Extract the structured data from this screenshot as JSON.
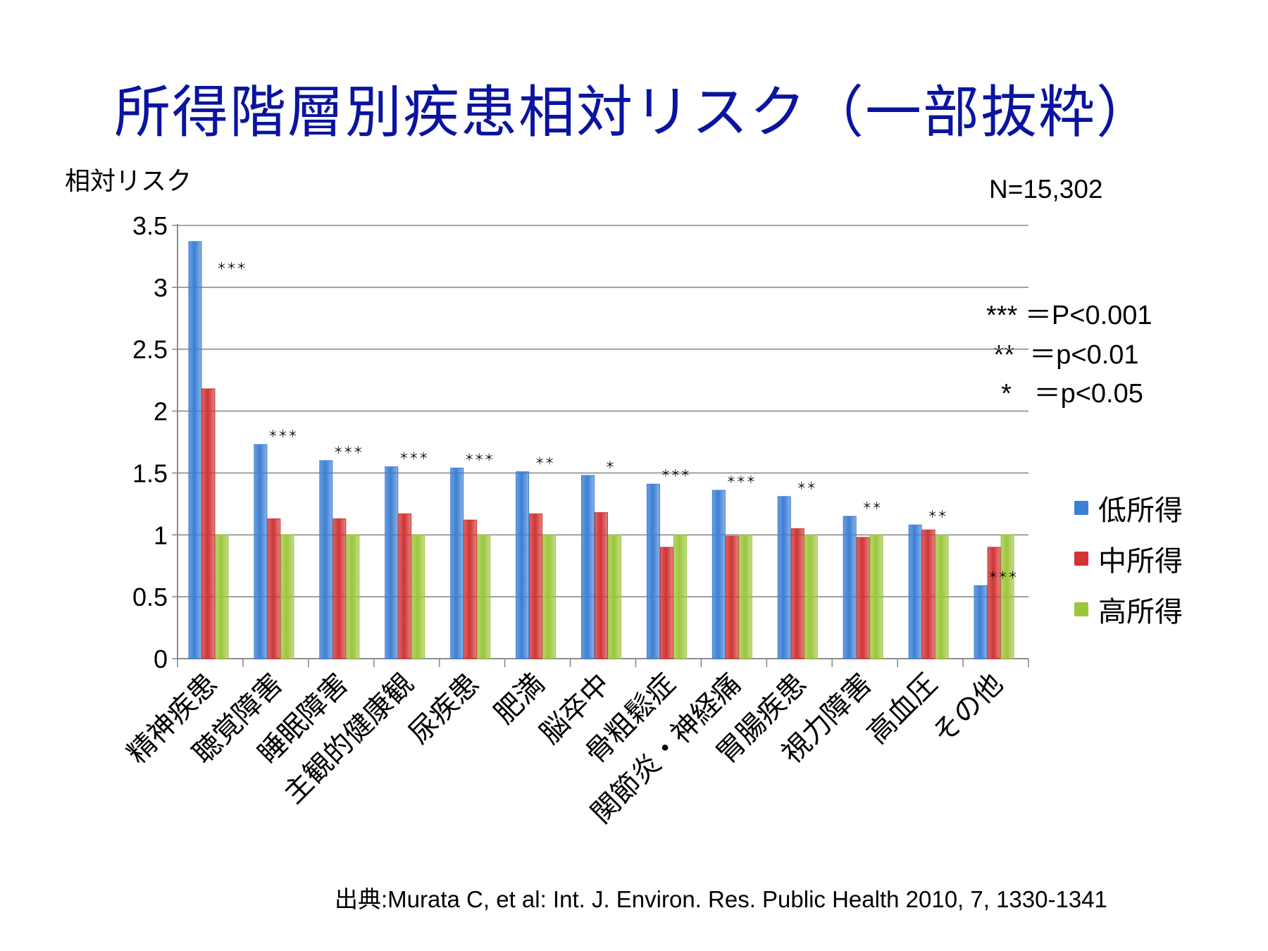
{
  "title": "所得階層別疾患相対リスク（一部抜粋）",
  "ylabel": "相対リスク",
  "n_label": "N=15,302",
  "significance": [
    "*** ＝P<0.001",
    " **  ＝p<0.01",
    "  *   ＝p<0.05"
  ],
  "source": "出典:Murata C, et al:  Int. J. Environ. Res. Public Health 2010, 7, 1330-1341",
  "colors": {
    "low": "#3d7fd4",
    "mid": "#d03434",
    "high": "#9cc63c",
    "grid": "#8c8c8c"
  },
  "chart_data": {
    "type": "bar",
    "ylabel": "相対リスク",
    "ylim": [
      0,
      3.5
    ],
    "yticks": [
      "0",
      "0.5",
      "1",
      "1.5",
      "2",
      "2.5",
      "3",
      "3.5"
    ],
    "grid": true,
    "legend_position": "right",
    "categories": [
      "精神疾患",
      "聴覚障害",
      "睡眠障害",
      "主観的健康観",
      "尿疾患",
      "肥満",
      "脳卒中",
      "骨粗鬆症",
      "関節炎・神経痛",
      "胃腸疾患",
      "視力障害",
      "高血圧",
      "その他"
    ],
    "series": [
      {
        "name": "低所得",
        "values": [
          3.37,
          1.73,
          1.6,
          1.55,
          1.54,
          1.51,
          1.48,
          1.41,
          1.36,
          1.31,
          1.15,
          1.08,
          0.59
        ]
      },
      {
        "name": "中所得",
        "values": [
          2.18,
          1.13,
          1.13,
          1.17,
          1.12,
          1.17,
          1.18,
          0.9,
          0.99,
          1.05,
          0.98,
          1.04,
          0.9
        ]
      },
      {
        "name": "高所得",
        "values": [
          1.0,
          1.0,
          1.0,
          1.0,
          1.0,
          1.0,
          1.0,
          1.0,
          1.0,
          1.0,
          1.0,
          1.0,
          1.0
        ]
      }
    ],
    "annotations": [
      "＊＊＊",
      "＊＊＊",
      "＊＊＊",
      "＊＊＊",
      "＊＊＊",
      "＊＊",
      "＊",
      "＊＊＊",
      "＊＊＊",
      "＊＊",
      "＊＊",
      "＊＊",
      "＊＊＊"
    ]
  }
}
